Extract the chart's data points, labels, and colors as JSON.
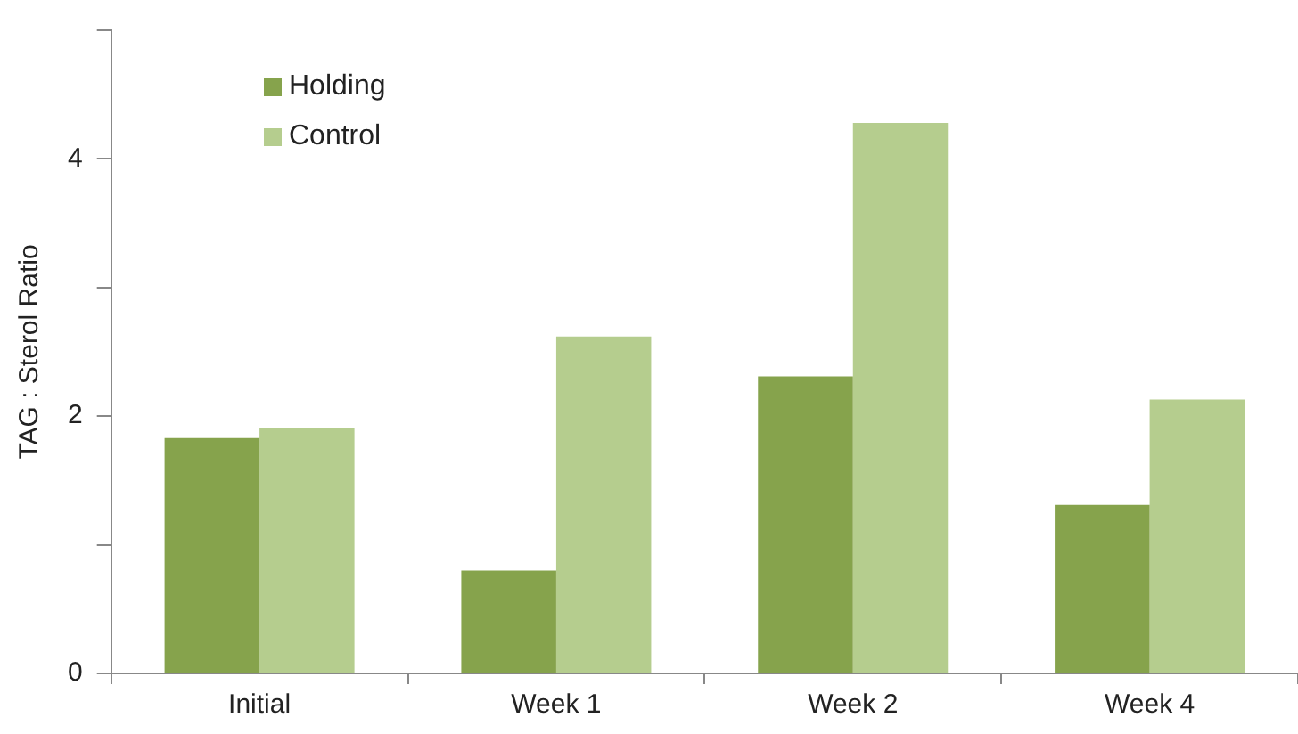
{
  "chart_data": {
    "type": "bar",
    "ylabel": "TAG : Sterol Ratio",
    "categories": [
      "Initial",
      "Week 1",
      "Week 2",
      "Week 4"
    ],
    "series": [
      {
        "name": "Holding",
        "color": "#86a34c",
        "values": [
          1.83,
          0.8,
          2.31,
          1.31
        ]
      },
      {
        "name": "Control",
        "color": "#b5cd8e",
        "values": [
          1.91,
          2.62,
          4.28,
          2.13
        ]
      }
    ],
    "ylim": [
      0,
      5
    ],
    "yticks": [
      0,
      {
        "value": 1,
        "label": null
      },
      2,
      {
        "value": 3,
        "label": null
      },
      4,
      {
        "value": 5,
        "label": null
      }
    ],
    "grid": false,
    "legend": "top left"
  }
}
